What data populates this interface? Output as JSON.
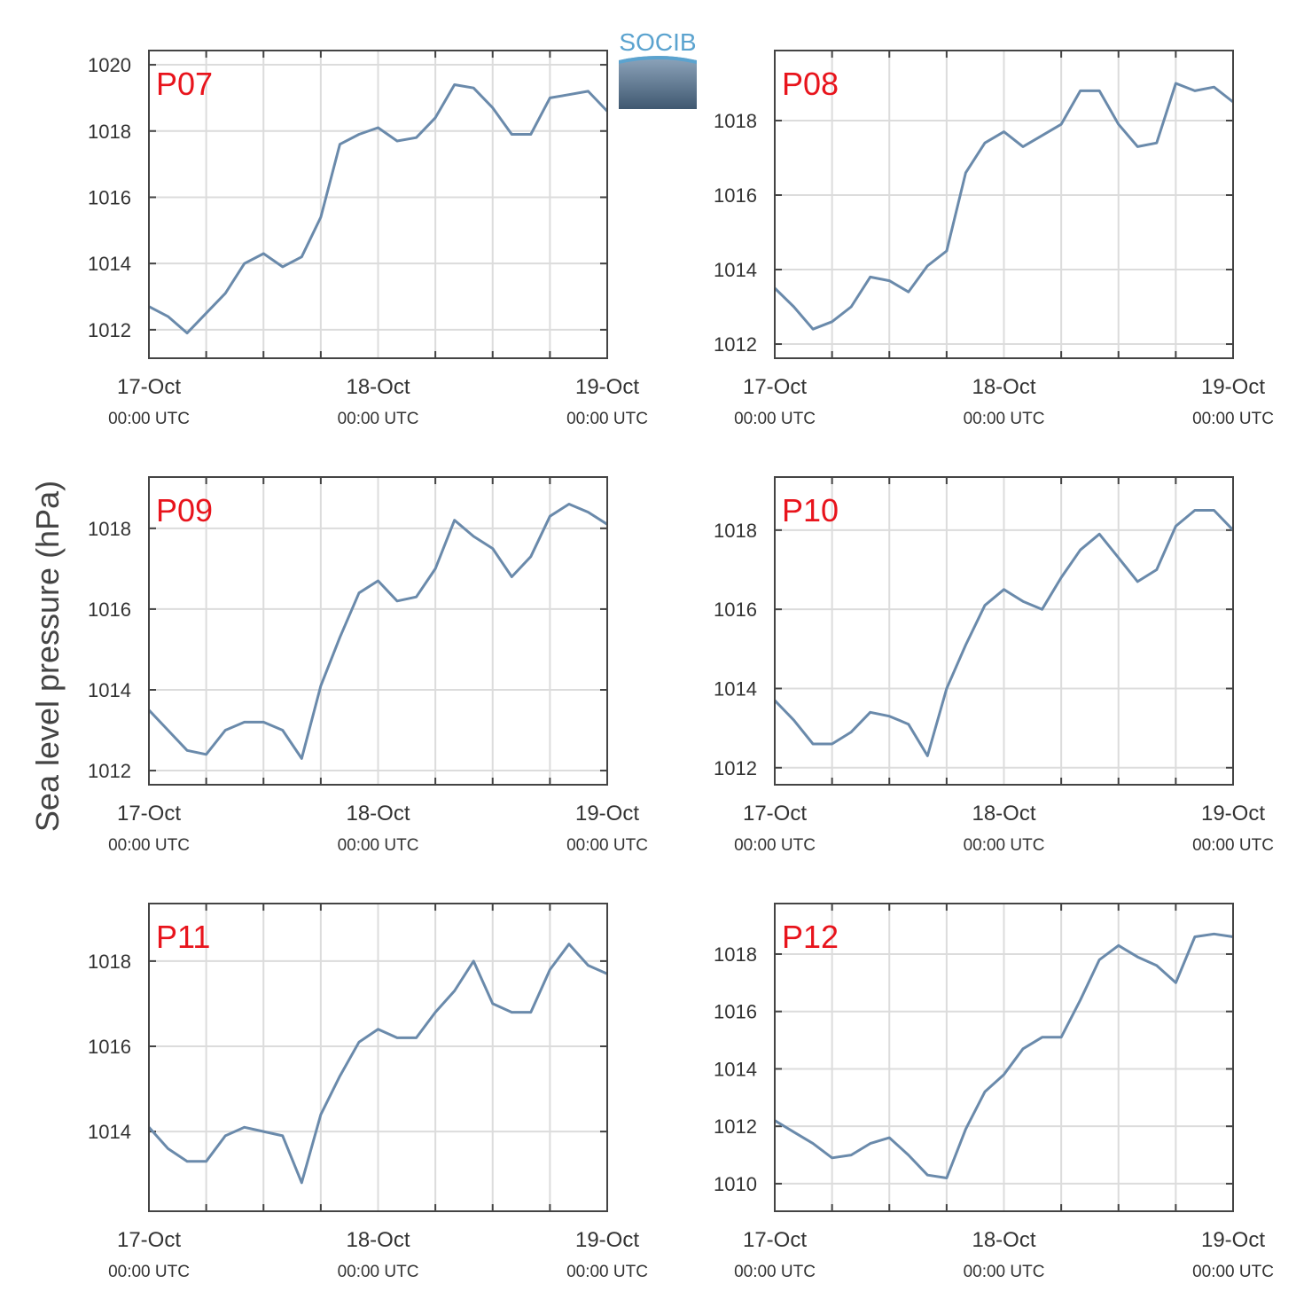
{
  "logo": "SOCIB",
  "ylabel": "Sea level pressure (hPa)",
  "chart_data": [
    {
      "type": "line",
      "title": "P07",
      "color": "#6a8aab",
      "title_color": "#e8141c",
      "grid": true,
      "x": [
        0,
        2,
        4,
        6,
        8,
        10,
        12,
        14,
        16,
        18,
        20,
        22,
        24,
        26,
        28,
        30,
        32,
        34,
        36,
        38,
        40,
        42,
        44,
        46,
        48
      ],
      "values": [
        1012.7,
        1012.4,
        1011.9,
        1012.5,
        1013.1,
        1014.0,
        1014.3,
        1013.9,
        1014.2,
        1015.4,
        1017.6,
        1017.9,
        1018.1,
        1017.7,
        1017.8,
        1018.4,
        1019.4,
        1019.3,
        1018.7,
        1017.9,
        1017.9,
        1019.0,
        1019.1,
        1019.2,
        1018.6
      ],
      "xlim": [
        0,
        48
      ],
      "xticks": [
        {
          "value": 0,
          "label": "17-Oct\n00:00 UTC"
        },
        {
          "value": 24,
          "label": "18-Oct\n00:00 UTC"
        },
        {
          "value": 48,
          "label": "19-Oct\n00:00 UTC"
        }
      ],
      "xminorticks": [
        6,
        12,
        18,
        30,
        36,
        42
      ],
      "ylim": [
        1011.14,
        1020.43
      ],
      "yticks": [
        1012,
        1014,
        1016,
        1018,
        1020
      ]
    },
    {
      "type": "line",
      "title": "P08",
      "color": "#6a8aab",
      "title_color": "#e8141c",
      "grid": true,
      "x": [
        0,
        2,
        4,
        6,
        8,
        10,
        12,
        14,
        16,
        18,
        20,
        22,
        24,
        26,
        28,
        30,
        32,
        34,
        36,
        38,
        40,
        42,
        44,
        46,
        48
      ],
      "values": [
        1013.5,
        1013.0,
        1012.4,
        1012.6,
        1013.0,
        1013.8,
        1013.7,
        1013.4,
        1014.1,
        1014.5,
        1016.6,
        1017.4,
        1017.7,
        1017.3,
        1017.6,
        1017.9,
        1018.8,
        1018.8,
        1017.9,
        1017.3,
        1017.4,
        1019.0,
        1018.8,
        1018.9,
        1018.5
      ],
      "xlim": [
        0,
        48
      ],
      "xticks": [
        {
          "value": 0,
          "label": "17-Oct\n00:00 UTC"
        },
        {
          "value": 24,
          "label": "18-Oct\n00:00 UTC"
        },
        {
          "value": 48,
          "label": "19-Oct\n00:00 UTC"
        }
      ],
      "xminorticks": [
        6,
        12,
        18,
        30,
        36,
        42
      ],
      "ylim": [
        1011.62,
        1019.88
      ],
      "yticks": [
        1012,
        1014,
        1016,
        1018
      ]
    },
    {
      "type": "line",
      "title": "P09",
      "color": "#6a8aab",
      "title_color": "#e8141c",
      "grid": true,
      "x": [
        0,
        2,
        4,
        6,
        8,
        10,
        12,
        14,
        16,
        18,
        20,
        22,
        24,
        26,
        28,
        30,
        32,
        34,
        36,
        38,
        40,
        42,
        44,
        46,
        48
      ],
      "values": [
        1013.5,
        1013.0,
        1012.5,
        1012.4,
        1013.0,
        1013.2,
        1013.2,
        1013.0,
        1012.3,
        1014.1,
        1015.3,
        1016.4,
        1016.7,
        1016.2,
        1016.3,
        1017.0,
        1018.2,
        1017.8,
        1017.5,
        1016.8,
        1017.3,
        1018.3,
        1018.6,
        1018.4,
        1018.1
      ],
      "xlim": [
        0,
        48
      ],
      "xticks": [
        {
          "value": 0,
          "label": "17-Oct\n00:00 UTC"
        },
        {
          "value": 24,
          "label": "18-Oct\n00:00 UTC"
        },
        {
          "value": 48,
          "label": "19-Oct\n00:00 UTC"
        }
      ],
      "xminorticks": [
        6,
        12,
        18,
        30,
        36,
        42
      ],
      "ylim": [
        1011.65,
        1019.27
      ],
      "yticks": [
        1012,
        1014,
        1016,
        1018
      ]
    },
    {
      "type": "line",
      "title": "P10",
      "color": "#6a8aab",
      "title_color": "#e8141c",
      "grid": true,
      "x": [
        0,
        2,
        4,
        6,
        8,
        10,
        12,
        14,
        16,
        18,
        20,
        22,
        24,
        26,
        28,
        30,
        32,
        34,
        36,
        38,
        40,
        42,
        44,
        46,
        48
      ],
      "values": [
        1013.7,
        1013.2,
        1012.6,
        1012.6,
        1012.9,
        1013.4,
        1013.3,
        1013.1,
        1012.3,
        1014.0,
        1015.1,
        1016.1,
        1016.5,
        1016.2,
        1016.0,
        1016.8,
        1017.5,
        1017.9,
        1017.3,
        1016.7,
        1017.0,
        1018.1,
        1018.5,
        1018.5,
        1018.0
      ],
      "xlim": [
        0,
        48
      ],
      "xticks": [
        {
          "value": 0,
          "label": "17-Oct\n00:00 UTC"
        },
        {
          "value": 24,
          "label": "18-Oct\n00:00 UTC"
        },
        {
          "value": 48,
          "label": "19-Oct\n00:00 UTC"
        }
      ],
      "xminorticks": [
        6,
        12,
        18,
        30,
        36,
        42
      ],
      "ylim": [
        1011.57,
        1019.34
      ],
      "yticks": [
        1012,
        1014,
        1016,
        1018
      ]
    },
    {
      "type": "line",
      "title": "P11",
      "color": "#6a8aab",
      "title_color": "#e8141c",
      "grid": true,
      "x": [
        0,
        2,
        4,
        6,
        8,
        10,
        12,
        14,
        16,
        18,
        20,
        22,
        24,
        26,
        28,
        30,
        32,
        34,
        36,
        38,
        40,
        42,
        44,
        46,
        48
      ],
      "values": [
        1014.1,
        1013.6,
        1013.3,
        1013.3,
        1013.9,
        1014.1,
        1014.0,
        1013.9,
        1012.8,
        1014.4,
        1015.3,
        1016.1,
        1016.4,
        1016.2,
        1016.2,
        1016.8,
        1017.3,
        1018.0,
        1017.0,
        1016.8,
        1016.8,
        1017.8,
        1018.4,
        1017.9,
        1017.7
      ],
      "xlim": [
        0,
        48
      ],
      "xticks": [
        {
          "value": 0,
          "label": "17-Oct\n00:00 UTC"
        },
        {
          "value": 24,
          "label": "18-Oct\n00:00 UTC"
        },
        {
          "value": 48,
          "label": "19-Oct\n00:00 UTC"
        }
      ],
      "xminorticks": [
        6,
        12,
        18,
        30,
        36,
        42
      ],
      "ylim": [
        1012.13,
        1019.35
      ],
      "yticks": [
        1014,
        1016,
        1018
      ]
    },
    {
      "type": "line",
      "title": "P12",
      "color": "#6a8aab",
      "title_color": "#e8141c",
      "grid": true,
      "x": [
        0,
        2,
        4,
        6,
        8,
        10,
        12,
        14,
        16,
        18,
        20,
        22,
        24,
        26,
        28,
        30,
        32,
        34,
        36,
        38,
        40,
        42,
        44,
        46,
        48
      ],
      "values": [
        1012.2,
        1011.8,
        1011.4,
        1010.9,
        1011.0,
        1011.4,
        1011.6,
        1011.0,
        1010.3,
        1010.2,
        1011.9,
        1013.2,
        1013.8,
        1014.7,
        1015.1,
        1015.1,
        1016.4,
        1017.8,
        1018.3,
        1017.9,
        1017.6,
        1017.0,
        1018.6,
        1018.7,
        1018.6
      ],
      "xlim": [
        0,
        48
      ],
      "xticks": [
        {
          "value": 0,
          "label": "17-Oct\n00:00 UTC"
        },
        {
          "value": 24,
          "label": "18-Oct\n00:00 UTC"
        },
        {
          "value": 48,
          "label": "19-Oct\n00:00 UTC"
        }
      ],
      "xminorticks": [
        6,
        12,
        18,
        30,
        36,
        42
      ],
      "ylim": [
        1009.04,
        1019.76
      ],
      "yticks": [
        1010,
        1012,
        1014,
        1016,
        1018
      ]
    }
  ]
}
